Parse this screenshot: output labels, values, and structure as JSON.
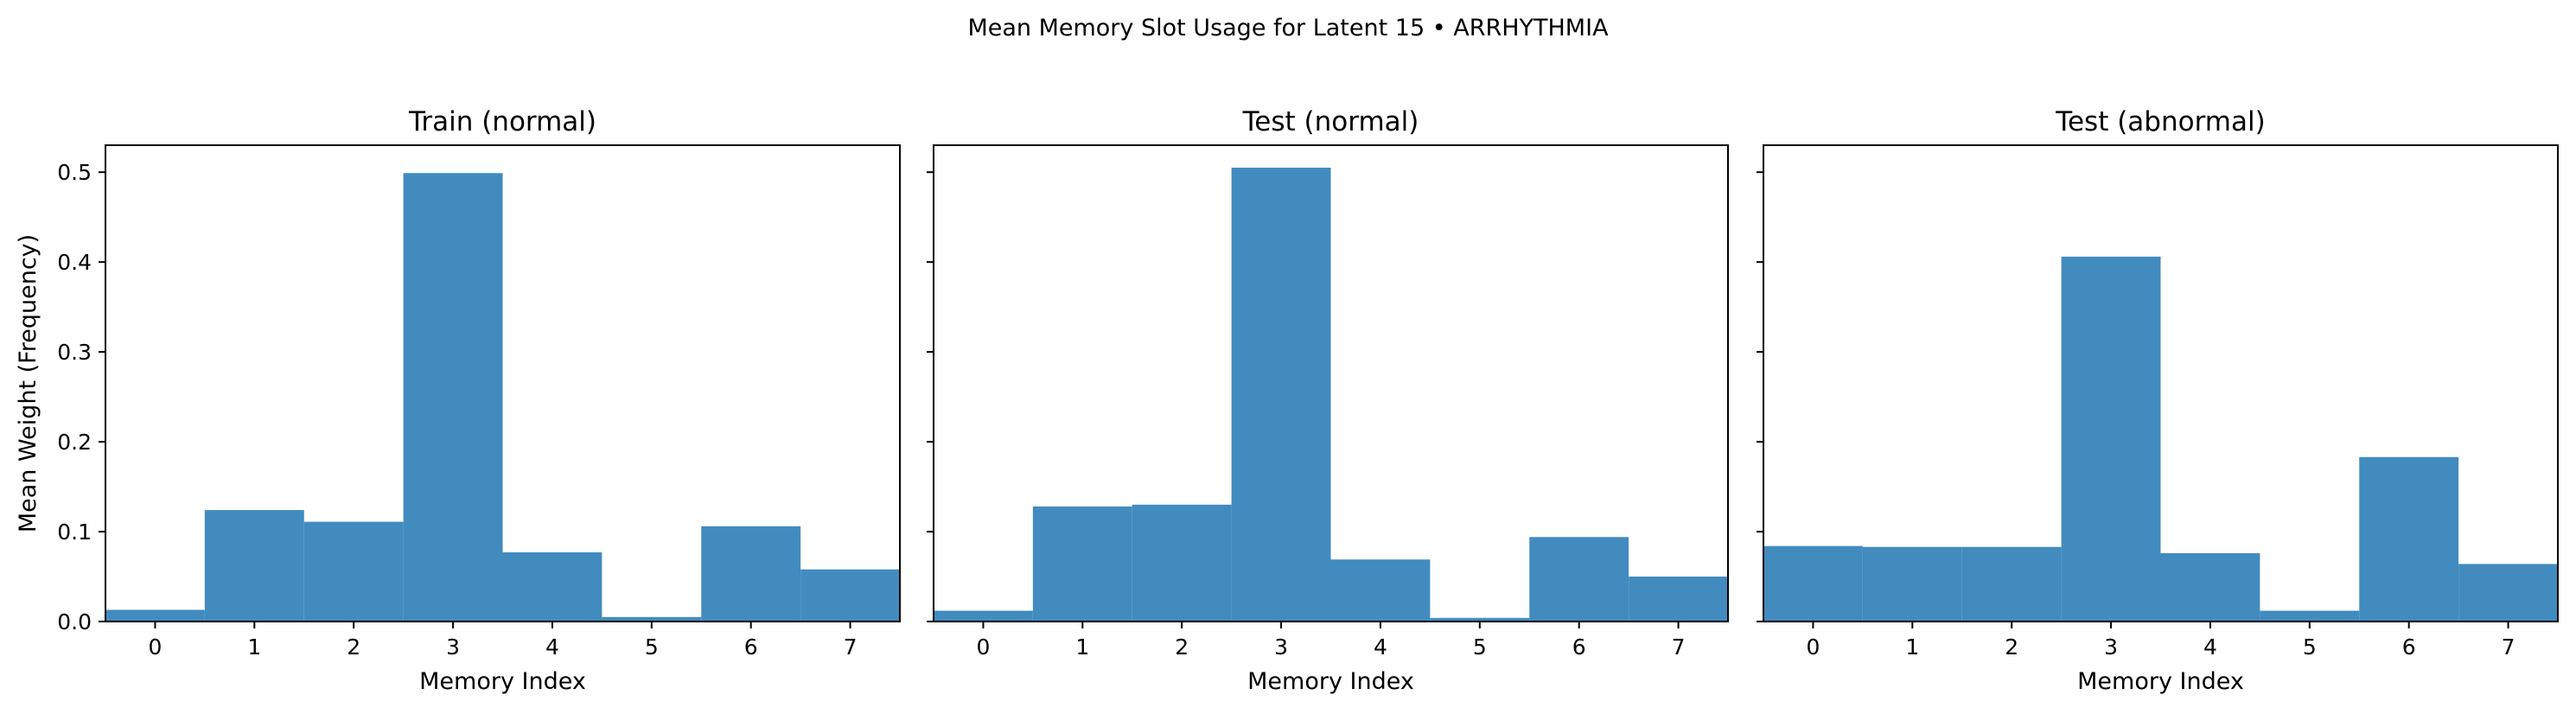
{
  "suptitle": "Mean Memory Slot Usage for Latent 15 • ARRHYTHMIA",
  "colors": {
    "bar": "#428bbf",
    "axis": "#000000",
    "background": "#ffffff"
  },
  "chart_data": [
    {
      "type": "bar",
      "title": "Train (normal)",
      "xlabel": "Memory Index",
      "ylabel": "Mean Weight (Frequency)",
      "categories": [
        "0",
        "1",
        "2",
        "3",
        "4",
        "5",
        "6",
        "7"
      ],
      "values": [
        0.013,
        0.124,
        0.111,
        0.499,
        0.077,
        0.005,
        0.106,
        0.058
      ],
      "xlim": [
        -0.5,
        7.5
      ],
      "ylim": [
        0,
        0.53
      ],
      "yticks": [
        "0.0",
        "0.1",
        "0.2",
        "0.3",
        "0.4",
        "0.5"
      ],
      "grid": false
    },
    {
      "type": "bar",
      "title": "Test (normal)",
      "xlabel": "Memory Index",
      "ylabel": "",
      "categories": [
        "0",
        "1",
        "2",
        "3",
        "4",
        "5",
        "6",
        "7"
      ],
      "values": [
        0.012,
        0.128,
        0.13,
        0.505,
        0.069,
        0.004,
        0.094,
        0.05
      ],
      "xlim": [
        -0.5,
        7.5
      ],
      "ylim": [
        0,
        0.53
      ],
      "yticks": [
        "",
        "",
        "",
        "",
        "",
        ""
      ],
      "grid": false
    },
    {
      "type": "bar",
      "title": "Test (abnormal)",
      "xlabel": "Memory Index",
      "ylabel": "",
      "categories": [
        "0",
        "1",
        "2",
        "3",
        "4",
        "5",
        "6",
        "7"
      ],
      "values": [
        0.084,
        0.083,
        0.083,
        0.406,
        0.076,
        0.012,
        0.183,
        0.064
      ],
      "xlim": [
        -0.5,
        7.5
      ],
      "ylim": [
        0,
        0.53
      ],
      "yticks": [
        "",
        "",
        "",
        "",
        "",
        ""
      ],
      "grid": false
    }
  ]
}
